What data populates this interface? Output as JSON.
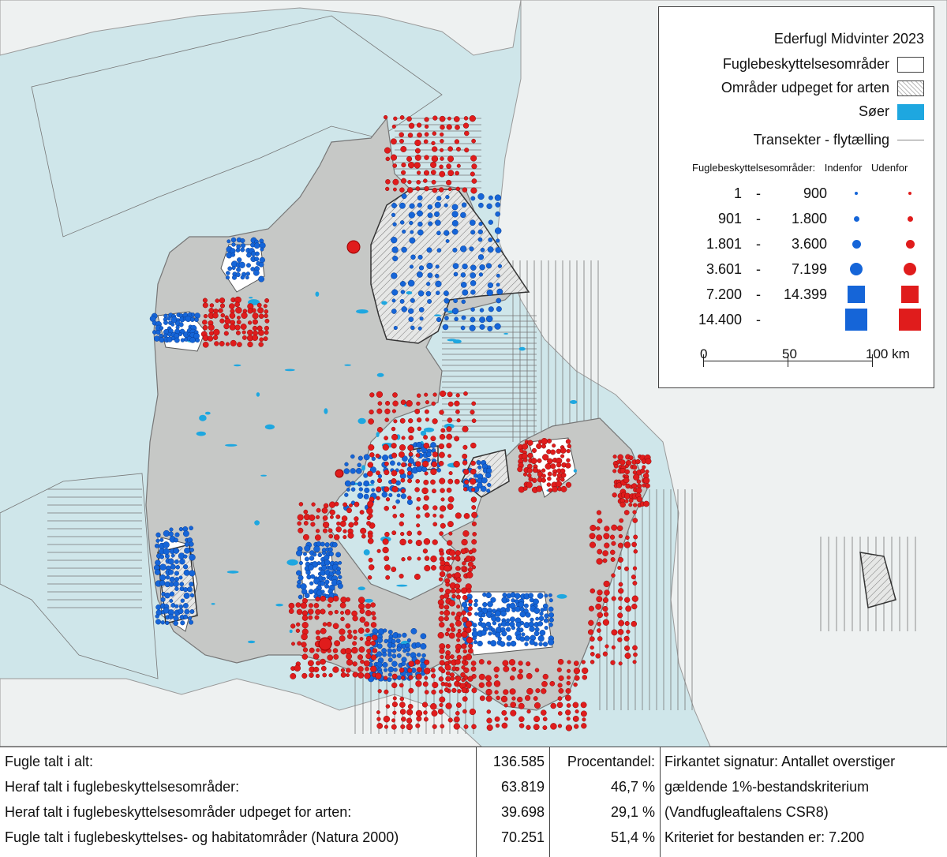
{
  "legend": {
    "title": "Ederfugl Midvinter 2023",
    "items": [
      {
        "label": "Fuglebeskyttelsesområder",
        "swatch": "white"
      },
      {
        "label": "Områder udpeget for arten",
        "swatch": "hatch"
      },
      {
        "label": "Søer",
        "swatch": "lake"
      },
      {
        "label": "Transekter - flytælling",
        "swatch": "line"
      }
    ],
    "header": {
      "label": "Fuglebeskyttelsesområder:",
      "inside": "Indenfor",
      "outside": "Udenfor"
    },
    "classes": [
      {
        "from": "1",
        "to": "900",
        "shape": "circle",
        "size": 4
      },
      {
        "from": "901",
        "to": "1.800",
        "shape": "circle",
        "size": 7
      },
      {
        "from": "1.801",
        "to": "3.600",
        "shape": "circle",
        "size": 11
      },
      {
        "from": "3.601",
        "to": "7.199",
        "shape": "circle",
        "size": 16
      },
      {
        "from": "7.200",
        "to": "14.399",
        "shape": "square",
        "size": 22
      },
      {
        "from": "14.400",
        "to": "",
        "shape": "square",
        "size": 28
      }
    ],
    "dash": "-",
    "colors": {
      "inside": "#1565d8",
      "outside": "#e01c1c",
      "lake": "#1ea7e0"
    },
    "scale": {
      "ticks": [
        "0",
        "50",
        "100 km"
      ]
    }
  },
  "stats": {
    "labels": [
      "Fugle talt i alt:",
      "Heraf talt i fuglebeskyttelsesområder:",
      "Heraf talt i fuglebeskyttelsesområder udpeget for arten:",
      "Fugle talt i fuglebeskyttelses- og habitatområder (Natura 2000)"
    ],
    "counts": [
      "136.585",
      "63.819",
      "39.698",
      "70.251"
    ],
    "pct_header": "Procentandel:",
    "pcts": [
      "46,7 %",
      "29,1 %",
      "51,4 %"
    ],
    "notes": [
      "Firkantet signatur: Antallet overstiger",
      "gældende 1%-bestandskriterium",
      "(Vandfugleaftalens CSR8)",
      "Kriteriet for bestanden er: 7.200"
    ]
  },
  "map_colors": {
    "sea": "#cfe6ea",
    "land": "#c6c8c6",
    "neighbour_land": "#eef1f1",
    "protected": "#ffffff"
  }
}
